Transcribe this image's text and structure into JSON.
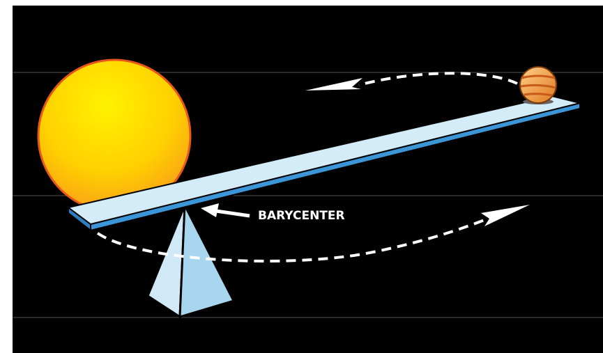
{
  "label": "BARYCENTER"
}
